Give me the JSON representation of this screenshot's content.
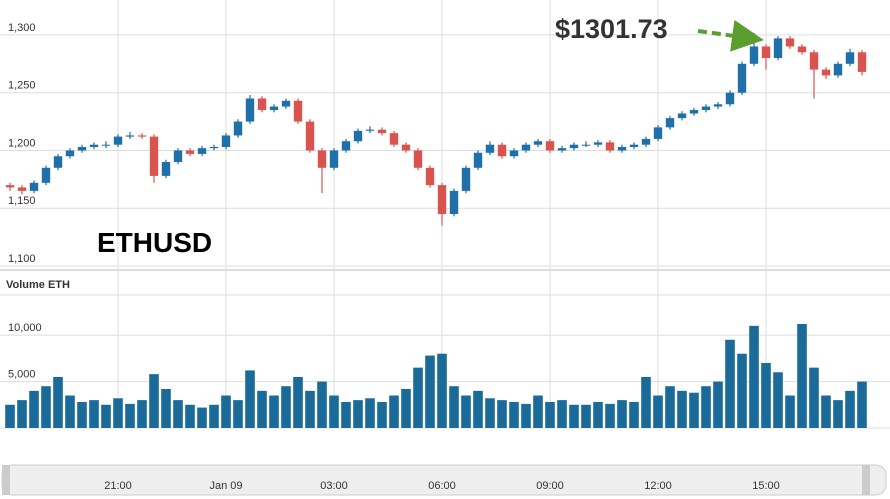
{
  "chart_data": {
    "type": "candlestick",
    "title": "ETHUSD",
    "annotation": "$1301.73",
    "categories": [
      null,
      null,
      null,
      null,
      null,
      null,
      null,
      null,
      null,
      "21:00",
      null,
      null,
      null,
      null,
      null,
      null,
      null,
      null,
      "Jan 09",
      null,
      null,
      null,
      null,
      null,
      null,
      null,
      null,
      "03:00",
      null,
      null,
      null,
      null,
      null,
      null,
      null,
      null,
      "06:00",
      null,
      null,
      null,
      null,
      null,
      null,
      null,
      null,
      "09:00",
      null,
      null,
      null,
      null,
      null,
      null,
      null,
      null,
      "12:00",
      null,
      null,
      null,
      null,
      null,
      null,
      null,
      null,
      "15:00",
      null,
      null,
      null,
      null,
      null,
      null,
      null,
      null
    ],
    "open": [
      1170,
      1168,
      1165,
      1172,
      1185,
      1195,
      1200,
      1203,
      1205,
      1205,
      1212,
      1213,
      1212,
      1178,
      1190,
      1200,
      1197,
      1202,
      1203,
      1213,
      1225,
      1245,
      1235,
      1238,
      1243,
      1225,
      1200,
      1185,
      1200,
      1208,
      1217,
      1218,
      1215,
      1205,
      1200,
      1185,
      1170,
      1145,
      1165,
      1185,
      1198,
      1205,
      1195,
      1200,
      1205,
      1208,
      1200,
      1202,
      1205,
      1205,
      1207,
      1200,
      1203,
      1205,
      1210,
      1220,
      1228,
      1232,
      1235,
      1238,
      1240,
      1250,
      1275,
      1290,
      1280,
      1297,
      1290,
      1285,
      1270,
      1265,
      1275,
      1285
    ],
    "high": [
      1172,
      1170,
      1174,
      1187,
      1197,
      1202,
      1205,
      1207,
      1208,
      1214,
      1216,
      1215,
      1214,
      1192,
      1202,
      1202,
      1204,
      1205,
      1215,
      1227,
      1248,
      1247,
      1240,
      1245,
      1245,
      1227,
      1202,
      1202,
      1210,
      1219,
      1221,
      1220,
      1217,
      1207,
      1202,
      1187,
      1172,
      1167,
      1187,
      1200,
      1208,
      1207,
      1202,
      1207,
      1210,
      1210,
      1204,
      1207,
      1208,
      1209,
      1209,
      1205,
      1207,
      1212,
      1222,
      1230,
      1234,
      1237,
      1240,
      1242,
      1252,
      1277,
      1301.73,
      1292,
      1299,
      1299,
      1292,
      1287,
      1272,
      1277,
      1288,
      1287
    ],
    "low": [
      1165,
      1162,
      1163,
      1170,
      1183,
      1193,
      1198,
      1201,
      1202,
      1203,
      1210,
      1210,
      1172,
      1176,
      1188,
      1195,
      1195,
      1200,
      1201,
      1211,
      1223,
      1233,
      1233,
      1236,
      1223,
      1198,
      1163,
      1183,
      1198,
      1206,
      1215,
      1213,
      1203,
      1198,
      1183,
      1168,
      1135,
      1143,
      1163,
      1183,
      1196,
      1193,
      1193,
      1198,
      1203,
      1198,
      1198,
      1200,
      1203,
      1203,
      1198,
      1198,
      1201,
      1203,
      1208,
      1218,
      1226,
      1230,
      1233,
      1236,
      1238,
      1248,
      1273,
      1270,
      1278,
      1288,
      1283,
      1245,
      1262,
      1263,
      1273,
      1265
    ],
    "close": [
      1168,
      1165,
      1172,
      1185,
      1195,
      1200,
      1203,
      1205,
      1205,
      1212,
      1213,
      1212,
      1178,
      1190,
      1200,
      1197,
      1202,
      1203,
      1213,
      1225,
      1245,
      1235,
      1238,
      1243,
      1225,
      1200,
      1185,
      1200,
      1208,
      1217,
      1218,
      1215,
      1205,
      1200,
      1185,
      1170,
      1145,
      1165,
      1185,
      1198,
      1205,
      1195,
      1200,
      1205,
      1208,
      1200,
      1202,
      1205,
      1205,
      1207,
      1200,
      1203,
      1205,
      1210,
      1220,
      1228,
      1232,
      1235,
      1238,
      1240,
      1250,
      1275,
      1290,
      1280,
      1297,
      1290,
      1285,
      1270,
      1265,
      1275,
      1285,
      1268
    ],
    "up_color": "#1f6fa8",
    "down_color": "#d9534f",
    "annotation_color": "#5a9e2f",
    "ylim": [
      1100,
      1306
    ],
    "yticks": [
      {
        "value": 1100,
        "label": "1,100"
      },
      {
        "value": 1150,
        "label": "1,150"
      },
      {
        "value": 1200,
        "label": "1,200"
      },
      {
        "value": 1250,
        "label": "1,250"
      },
      {
        "value": 1300,
        "label": "1,300"
      }
    ],
    "grid": true,
    "volume": {
      "label": "Volume ETH",
      "color": "#1a6a9a",
      "ylim": [
        0,
        14000
      ],
      "yticks": [
        0,
        {
          "value": 5000,
          "label": "5,000"
        },
        {
          "value": 10000,
          "label": "10,000"
        }
      ],
      "values": [
        2500,
        3000,
        4000,
        4500,
        5500,
        3500,
        2800,
        3000,
        2500,
        3200,
        2600,
        3000,
        5800,
        4200,
        3000,
        2500,
        2200,
        2500,
        3500,
        3000,
        6200,
        4000,
        3500,
        4500,
        5500,
        4000,
        5000,
        3500,
        2800,
        3000,
        3200,
        2800,
        3500,
        4200,
        6500,
        7800,
        8000,
        4500,
        3500,
        4000,
        3200,
        3000,
        2800,
        2600,
        3500,
        2800,
        3000,
        2500,
        2500,
        2800,
        2600,
        3000,
        2800,
        5500,
        3500,
        4500,
        4000,
        3800,
        4500,
        5000,
        9500,
        8000,
        11000,
        7000,
        6000,
        3500,
        11200,
        6500,
        3500,
        3000,
        4000,
        5000
      ]
    }
  }
}
